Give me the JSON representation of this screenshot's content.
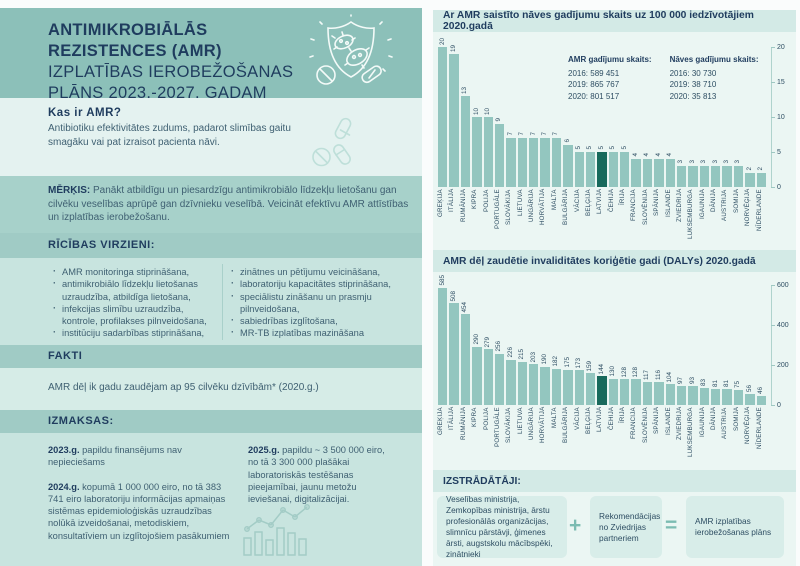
{
  "left_panel": {
    "title": {
      "line1": "ANTIMIKROBIĀLĀS",
      "line2": "REZISTENCES (AMR)",
      "line3": "IZPLATĪBAS IEROBEŽOŠANAS",
      "line4": "PLĀNS 2023.-2027. GADAM"
    },
    "kas": {
      "heading": "Kas ir AMR?",
      "body": "Antibiotiku efektivitātes zudums, padarot slimības gaitu smagāku vai pat izraisot pacienta nāvi."
    },
    "merkis": {
      "label": "MĒRĶIS:",
      "body": "Panākt atbildīgu un piesardzīgu antimikrobiālo līdzekļu lietošanu gan cilvēku veselības aprūpē gan dzīvnieku veselībā. Veicināt efektīvu AMR attīstības un izplatības ierobežošanu."
    },
    "ricibas": {
      "heading": "RĪCĪBAS VIRZIENI:",
      "left_items": [
        "AMR monitoringa stiprināšana,",
        "antimikrobiālo līdzekļu lietošanas uzraudzība, atbildīga lietošana,",
        "infekcijas slimību uzraudzība, kontrole, profilakses pilnveidošana,",
        "institūciju sadarbības stiprināšana,"
      ],
      "right_items": [
        "zinātnes un pētījumu veicināšana,",
        "laboratoriju kapacitātes stiprināšana,",
        "speciālistu zināšanu un prasmju pilnveidošana,",
        "sabiedrības izglītošana,",
        "MR-TB izplatības mazināšana"
      ]
    },
    "fakti": {
      "heading": "FAKTI",
      "body": "AMR dēļ ik gadu zaudējam ap 95 cilvēku dzīvībām* (2020.g.)"
    },
    "izmaksas": {
      "heading": "IZMAKSAS:",
      "col1": [
        {
          "year": "2023.g.",
          "text": "papildu finansējums nav nepieciešams"
        },
        {
          "year": "2024.g.",
          "text": "kopumā 1 000 000 eiro, no tā 383 741 eiro laboratoriju informācijas apmaiņas sistēmas epidemioloģiskās uzraudzības nolūkā izveidošanai, metodiskiem, konsultatīviem un izglītojošiem pasākumiem"
        }
      ],
      "col2": [
        {
          "year": "2025.g.",
          "text": "papildu ~ 3 500 000 eiro, no tā 3 300 000 plašākai laboratoriskās testēšanas pieejamībai, jaunu metožu ieviešanai, digitalizācijai."
        }
      ]
    }
  },
  "chart_data": [
    {
      "type": "bar",
      "title": "Ar AMR saistīto nāves gadījumu skaits uz 100 000 iedzīvotājiem 2020.gadā",
      "categories": [
        "GREĶIJA",
        "ITĀLIJA",
        "RUMĀNIJA",
        "KIPRA",
        "POLIJA",
        "PORTUGĀLE",
        "SLOVĀKIJA",
        "LIETUVA",
        "UNGĀRIJA",
        "HORVĀTIJA",
        "MALTA",
        "BULGĀRIJA",
        "VĀCIJA",
        "BEĻĢIJA",
        "LATVIJA",
        "ČEHIJA",
        "ĪRIJA",
        "FRANCIJA",
        "SLOVĒNIJA",
        "SPĀNIJA",
        "ISLANDE",
        "ZVIEDRIJA",
        "LUKSEMBURGA",
        "IGAUNIJA",
        "DĀNIJA",
        "AUSTRIJA",
        "SOMIJA",
        "NORVĒĢIJA",
        "NĪDERLANDE"
      ],
      "values": [
        20,
        19,
        13,
        10,
        10,
        9,
        7,
        7,
        7,
        7,
        7,
        6,
        5,
        5,
        5,
        5,
        5,
        4,
        4,
        4,
        4,
        3,
        3,
        3,
        3,
        3,
        3,
        2,
        2
      ],
      "highlight_category": "LATVIJA",
      "ylim": [
        0,
        20
      ],
      "yticks": [
        20,
        15,
        10,
        5,
        0
      ],
      "bar_color": "#93C6BF",
      "highlight_color": "#17695B",
      "legend": [
        {
          "title": "AMR gadījumu skaits:",
          "lines": [
            "2016: 589 451",
            "2019: 865 767",
            "2020: 801 517"
          ]
        },
        {
          "title": "Nāves gadījumu skaits:",
          "lines": [
            "2016: 30 730",
            "2019: 38 710",
            "2020: 35 813"
          ]
        }
      ]
    },
    {
      "type": "bar",
      "title": "AMR dēļ zaudētie invaliditātes koriģētie gadi (DALYs) 2020.gadā",
      "categories": [
        "GREĶIJA",
        "ITĀLIJA",
        "RUMĀNIJA",
        "KIPRA",
        "POLIJA",
        "PORTUGĀLE",
        "SLOVĀKIJA",
        "LIETUVA",
        "UNGĀRIJA",
        "HORVĀTIJA",
        "MALTA",
        "BULGĀRIJA",
        "VĀCIJA",
        "BEĻĢIJA",
        "LATVIJA",
        "ČEHIJA",
        "ĪRIJA",
        "FRANCIJA",
        "SLOVĒNIJA",
        "SPĀNIJA",
        "ISLANDE",
        "ZVIEDRIJA",
        "LUKSEMBURGA",
        "IGAUNIJA",
        "DĀNIJA",
        "AUSTRIJA",
        "SOMIJA",
        "NORVĒĢIJA",
        "NĪDERLANDE"
      ],
      "values": [
        585,
        508,
        454,
        290,
        279,
        256,
        226,
        215,
        203,
        190,
        182,
        175,
        173,
        159,
        144,
        130,
        128,
        128,
        117,
        116,
        104,
        97,
        93,
        83,
        81,
        81,
        75,
        56,
        46
      ],
      "highlight_category": "LATVIJA",
      "ylim": [
        0,
        600
      ],
      "yticks": [
        600,
        400,
        200,
        0
      ],
      "bar_color": "#93C6BF",
      "highlight_color": "#17695B",
      "legend": []
    }
  ],
  "developers": {
    "heading": "IZSTRĀDĀTĀJI:",
    "box1": "Veselības ministrija, Zemkopības ministrija, ārstu profesionālās organizācijas, slimnīcu pārstāvji, ģimenes ārsti, augstskolu mācībspēki, zinātnieki",
    "plus": "+",
    "box2": "Rekomendācijas no Zviedrijas partneriem",
    "equals": "=",
    "box3": "AMR izplatības ierobežošanas plāns"
  },
  "colors": {
    "bar": "#93C6BF",
    "highlight": "#17695B",
    "navy": "#1F3C5E",
    "teal_header": "#8CC0B9"
  }
}
